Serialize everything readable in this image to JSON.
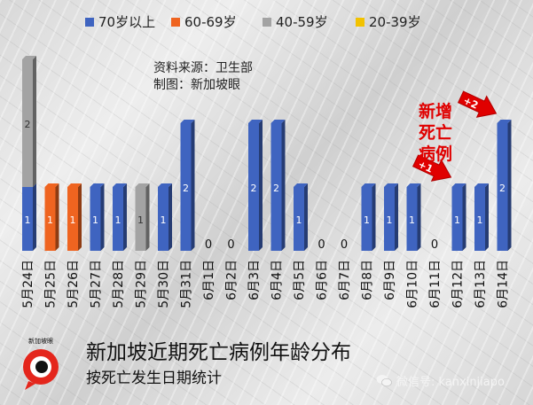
{
  "chart_data": {
    "type": "bar",
    "stacked": true,
    "categories": [
      "5月24日",
      "5月25日",
      "5月26日",
      "5月27日",
      "5月28日",
      "5月29日",
      "5月30日",
      "5月31日",
      "6月1日",
      "6月2日",
      "6月3日",
      "6月4日",
      "6月5日",
      "6月6日",
      "6月7日",
      "6月8日",
      "6月9日",
      "6月10日",
      "6月11日",
      "6月12日",
      "6月13日",
      "6月14日"
    ],
    "series": [
      {
        "name": "70岁以上",
        "color": "#3f64c0",
        "values": [
          1,
          0,
          0,
          1,
          1,
          0,
          1,
          2,
          0,
          0,
          2,
          2,
          1,
          0,
          0,
          1,
          1,
          1,
          0,
          1,
          1,
          2
        ]
      },
      {
        "name": "60-69岁",
        "color": "#ef6420",
        "values": [
          0,
          1,
          1,
          0,
          0,
          0,
          0,
          0,
          0,
          0,
          0,
          0,
          0,
          0,
          0,
          0,
          0,
          0,
          0,
          0,
          0,
          0
        ]
      },
      {
        "name": "40-59岁",
        "color": "#a3a3a3",
        "values": [
          2,
          0,
          0,
          0,
          0,
          1,
          0,
          0,
          0,
          0,
          0,
          0,
          0,
          0,
          0,
          0,
          0,
          0,
          0,
          0,
          0,
          0
        ]
      },
      {
        "name": "20-39岁",
        "color": "#f2c200",
        "values": [
          0,
          0,
          0,
          0,
          0,
          0,
          0,
          0,
          0,
          0,
          0,
          0,
          0,
          0,
          0,
          0,
          0,
          0,
          0,
          0,
          0,
          0
        ]
      }
    ],
    "totals": [
      3,
      1,
      1,
      1,
      1,
      1,
      1,
      2,
      0,
      0,
      2,
      2,
      1,
      0,
      0,
      1,
      1,
      1,
      0,
      1,
      1,
      2
    ],
    "zero_labels": [
      "0",
      "0",
      "0",
      "0",
      "0"
    ],
    "ylim": [
      0,
      3
    ],
    "grid": false,
    "legend_position": "top",
    "callouts": [
      {
        "category_index": 19,
        "label": "+1"
      },
      {
        "category_index": 21,
        "label": "+2"
      }
    ]
  },
  "source_line": "资料来源：卫生部",
  "credit_line": "制图：新加坡眼",
  "annotation": "新增死亡病例",
  "footer": {
    "title": "新加坡近期死亡病例年龄分布",
    "subtitle": "按死亡发生日期统计"
  },
  "logo_text": "新加坡眼",
  "wechat": "微信号: kanxinjiapo",
  "colors": {
    "annotation": "#e00000",
    "arrow": "#e00000"
  }
}
